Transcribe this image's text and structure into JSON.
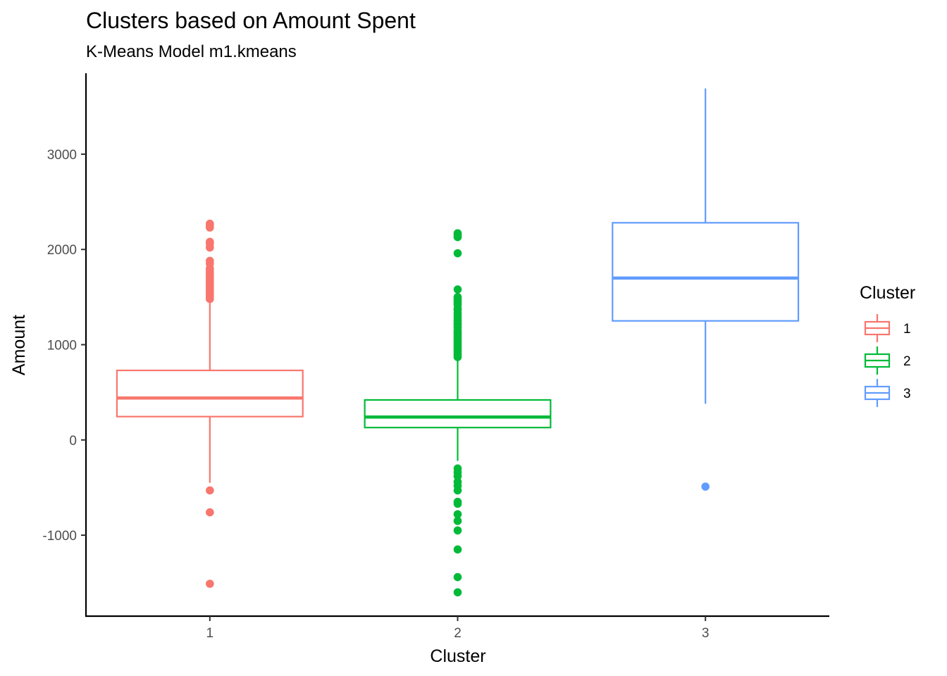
{
  "chart_data": {
    "type": "box",
    "title": "Clusters based on Amount Spent",
    "subtitle": "K-Means Model m1.kmeans",
    "xlabel": "Cluster",
    "ylabel": "Amount",
    "categories": [
      "1",
      "2",
      "3"
    ],
    "y_ticks": [
      -1000,
      0,
      1000,
      2000,
      3000
    ],
    "y_tick_labels": [
      "-1000",
      "0",
      "1000",
      "2000",
      "3000"
    ],
    "ylim": [
      -1850,
      3850
    ],
    "grid": false,
    "legend": {
      "title": "Cluster",
      "position": "right",
      "entries": [
        "1",
        "2",
        "3"
      ]
    },
    "colors": [
      "#F8766D",
      "#00BA38",
      "#619CFF"
    ],
    "series": [
      {
        "category": "1",
        "min": -450,
        "q1": 245,
        "median": 440,
        "q3": 730,
        "max": 1450,
        "outliers": [
          2270,
          2250,
          2230,
          2080,
          2060,
          2020,
          1880,
          1850,
          1800,
          1780,
          1760,
          1740,
          1720,
          1700,
          1680,
          1660,
          1640,
          1620,
          1600,
          1580,
          1560,
          1540,
          1520,
          1500,
          1480,
          -530,
          -760,
          -1510
        ]
      },
      {
        "category": "2",
        "min": -220,
        "q1": 130,
        "median": 240,
        "q3": 420,
        "max": 860,
        "outliers": [
          2170,
          2150,
          2130,
          1960,
          1580,
          1500,
          1480,
          1460,
          1440,
          1420,
          1380,
          1360,
          1330,
          1300,
          1270,
          1250,
          1230,
          1210,
          1180,
          1150,
          1130,
          1110,
          1090,
          1070,
          1050,
          1030,
          1010,
          990,
          970,
          950,
          930,
          910,
          890,
          870,
          -300,
          -340,
          -380,
          -440,
          -480,
          -530,
          -650,
          -670,
          -780,
          -850,
          -950,
          -1150,
          -1440,
          -1600
        ]
      },
      {
        "category": "3",
        "min": 380,
        "q1": 1250,
        "median": 1700,
        "q3": 2280,
        "max": 3690,
        "outliers": [
          -490
        ]
      }
    ]
  }
}
